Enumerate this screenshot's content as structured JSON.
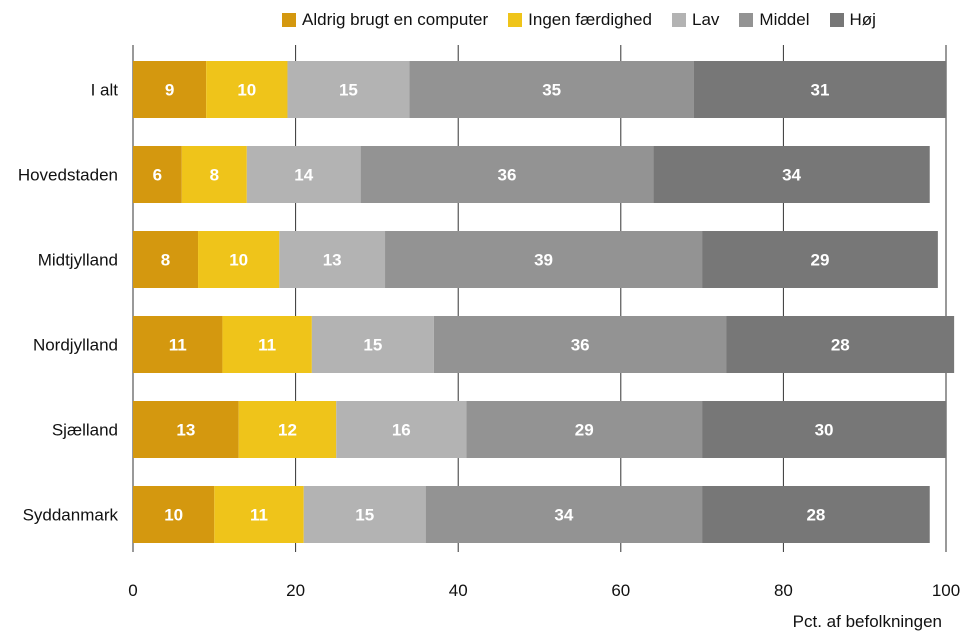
{
  "chart_data": {
    "type": "bar",
    "orientation": "horizontal",
    "stacked": true,
    "title": "",
    "xlabel": "Pct. af befolkningen",
    "ylabel": "",
    "xlim": [
      0,
      100
    ],
    "xticks": [
      "0",
      "20",
      "40",
      "60",
      "80",
      "100"
    ],
    "grid": true,
    "legend_position": "top",
    "categories": [
      "I alt",
      "Hovedstaden",
      "Midtjylland",
      "Nordjylland",
      "Sjælland",
      "Syddanmark"
    ],
    "series": [
      {
        "name": "Aldrig brugt en computer",
        "color": "#d4980f",
        "values": [
          9,
          6,
          8,
          11,
          13,
          10
        ]
      },
      {
        "name": "Ingen færdighed",
        "color": "#efc41a",
        "values": [
          10,
          8,
          10,
          11,
          12,
          11
        ]
      },
      {
        "name": "Lav",
        "color": "#b3b3b3",
        "values": [
          15,
          14,
          13,
          15,
          16,
          15
        ]
      },
      {
        "name": "Middel",
        "color": "#939393",
        "values": [
          35,
          36,
          39,
          36,
          29,
          34
        ]
      },
      {
        "name": "Høj",
        "color": "#777777",
        "values": [
          31,
          34,
          29,
          28,
          30,
          28
        ]
      }
    ]
  }
}
